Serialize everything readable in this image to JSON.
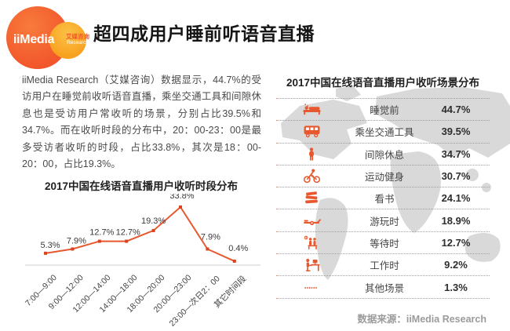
{
  "page": {
    "title": "超四成用户睡前听语音直播"
  },
  "logo": {
    "brand": "iiMedia",
    "cn": "艾媒咨询",
    "sub": "Research"
  },
  "intro": "iiMedia Research（艾媒咨询）数据显示，44.7%的受访用户在睡觉前收听语音直播，乘坐交通工具和间隙休息也是受访用户常收听的场景，分别占比39.5%和34.7%。而在收听时段的分布中，20：00-23：00是最多受访者收听的时段，占比33.8%，其次是18：00-20：00，占比19.3%。",
  "source": "数据来源：iiMedia Research",
  "colors": {
    "accent": "#E8582E",
    "marker": "#D9431F",
    "title": "#151515",
    "logo_orange": "#F2572B",
    "logo_orange_light": "#F87B3C",
    "logo_yellow": "#F8A01F",
    "logo_yellow_light": "#FBC246",
    "dotted": "#E98563",
    "map": "#D9D9D9",
    "axis_line": "#CFCFCF",
    "text_body": "#4A4A4A",
    "point_label": "#3A3A3A",
    "source_gray": "#9B9B9B"
  },
  "chart_data": [
    {
      "type": "line",
      "title": "2017中国在线语音直播用户收听时段分布",
      "categories": [
        "7:00—9:00",
        "9:00—12:00",
        "12:00—14:00",
        "14:00—18:00",
        "18:00—20:00",
        "20:00—23:00",
        "23:00—次日2：00",
        "其它时间段"
      ],
      "values": [
        5.3,
        7.9,
        12.7,
        12.7,
        19.3,
        33.8,
        7.9,
        0.4
      ],
      "labels": [
        "5.3%",
        "7.9%",
        "12.7%",
        "12.7%",
        "19.3%",
        "33.8%",
        "7.9%",
        "0.4%"
      ],
      "unit": "%",
      "xlabel": "",
      "ylabel": "",
      "ylim": [
        0,
        40
      ],
      "grid": false,
      "legend": "none"
    },
    {
      "type": "table",
      "title": "2017中国在线语音直播用户收听场景分布",
      "rows": [
        {
          "icon": "bed-icon",
          "label": "睡觉前",
          "value": "44.7%"
        },
        {
          "icon": "bus-icon",
          "label": "乘坐交通工具",
          "value": "39.5%"
        },
        {
          "icon": "rest-icon",
          "label": "间隙休息",
          "value": "34.7%"
        },
        {
          "icon": "cycling-icon",
          "label": "运动健身",
          "value": "30.7%"
        },
        {
          "icon": "books-icon",
          "label": "看书",
          "value": "24.1%"
        },
        {
          "icon": "play-icon",
          "label": "游玩时",
          "value": "18.9%"
        },
        {
          "icon": "waiting-icon",
          "label": "等待时",
          "value": "12.7%"
        },
        {
          "icon": "working-icon",
          "label": "工作时",
          "value": "9.2%"
        },
        {
          "icon": "dots-icon",
          "label": "其他场景",
          "value": "1.3%"
        }
      ]
    }
  ]
}
